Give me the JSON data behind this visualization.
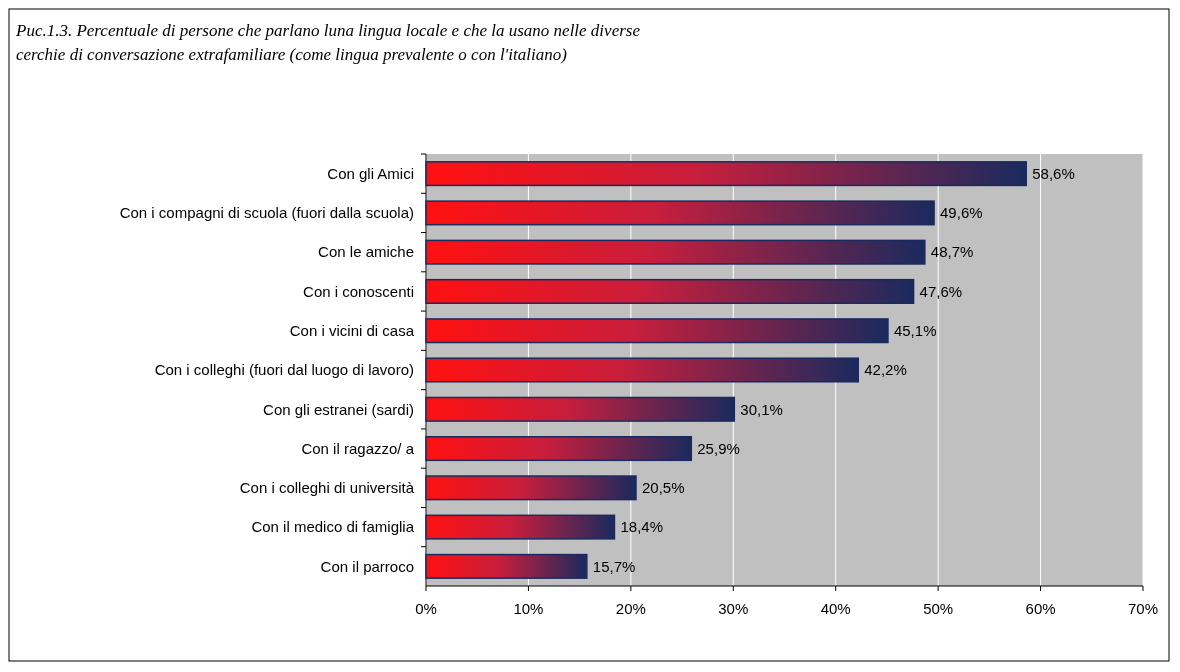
{
  "chart_data": {
    "type": "bar",
    "orientation": "horizontal",
    "title": "Puc.1.3. Percentuale di persone che parlano luna lingua locale e che la usano nelle diverse cerchie di conversazione extrafamiliare (come lingua prevalente o con l'italiano)",
    "categories": [
      "Con gli Amici",
      "Con i compagni di scuola (fuori dalla scuola)",
      "Con le amiche",
      "Con i conoscenti",
      "Con i vicini di casa",
      "Con i colleghi (fuori dal luogo di lavoro)",
      "Con gli estranei (sardi)",
      "Con il ragazzo/ a",
      "Con i colleghi di università",
      "Con il medico di famiglia",
      "Con il parroco"
    ],
    "values": [
      58.6,
      49.6,
      48.7,
      47.6,
      45.1,
      42.2,
      30.1,
      25.9,
      20.5,
      18.4,
      15.7
    ],
    "value_labels": [
      "58,6%",
      "49,6%",
      "48,7%",
      "47,6%",
      "45,1%",
      "42,2%",
      "30,1%",
      "25,9%",
      "20,5%",
      "18,4%",
      "15,7%"
    ],
    "color": "#1a2a5e",
    "xlim": [
      0,
      70
    ],
    "xticks": [
      {
        "value": 0,
        "label": "0%"
      },
      {
        "value": 10,
        "label": "10%"
      },
      {
        "value": 20,
        "label": "20%"
      },
      {
        "value": 30,
        "label": "30%"
      },
      {
        "value": 40,
        "label": "40%"
      },
      {
        "value": 50,
        "label": "50%"
      },
      {
        "value": 60,
        "label": "60%"
      },
      {
        "value": 70,
        "label": "70%"
      }
    ],
    "grid": "x"
  }
}
